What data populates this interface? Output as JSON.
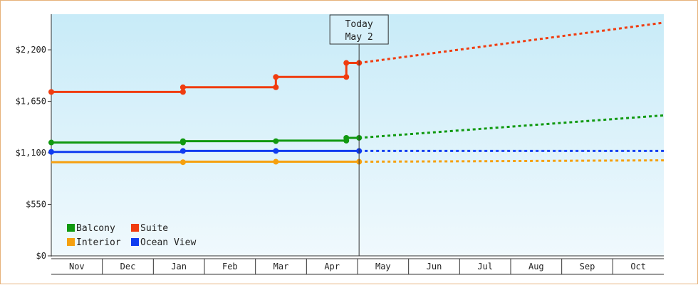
{
  "chart_data": {
    "type": "line",
    "y_tick_labels": [
      "$0",
      "$550",
      "$1,100",
      "$1,650",
      "$2,200"
    ],
    "y_ticks": [
      0,
      550,
      1100,
      1650,
      2200
    ],
    "ylim": [
      0,
      2580
    ],
    "x_months": [
      "Nov",
      "Dec",
      "Jan",
      "Feb",
      "Mar",
      "Apr",
      "May",
      "Jun",
      "Jul",
      "Aug",
      "Sep",
      "Oct"
    ],
    "today_label": [
      "Today",
      "May 2"
    ],
    "today_month_index": 6.03,
    "grid": false,
    "legend_position": "bottom-left",
    "series": [
      {
        "name": "Balcony",
        "color": "#109910",
        "points": [
          [
            0,
            1210
          ],
          [
            2.58,
            1210
          ],
          [
            2.58,
            1225
          ],
          [
            4.4,
            1225
          ],
          [
            4.4,
            1230
          ],
          [
            5.78,
            1230
          ],
          [
            5.78,
            1260
          ],
          [
            6.03,
            1260
          ]
        ],
        "forecast": [
          [
            6.03,
            1260
          ],
          [
            12,
            1500
          ]
        ]
      },
      {
        "name": "Suite",
        "color": "#f03c0f",
        "points": [
          [
            0,
            1750
          ],
          [
            2.58,
            1750
          ],
          [
            2.58,
            1800
          ],
          [
            4.4,
            1800
          ],
          [
            4.4,
            1910
          ],
          [
            5.78,
            1910
          ],
          [
            5.78,
            2060
          ],
          [
            6.03,
            2060
          ]
        ],
        "forecast": [
          [
            6.03,
            2060
          ],
          [
            12,
            2490
          ]
        ]
      },
      {
        "name": "Interior",
        "color": "#f5a00f",
        "points": [
          [
            0,
            1000
          ],
          [
            2.58,
            1000
          ],
          [
            2.58,
            1005
          ],
          [
            4.4,
            1005
          ],
          [
            4.4,
            1005
          ],
          [
            6.03,
            1005
          ]
        ],
        "forecast": [
          [
            6.03,
            1005
          ],
          [
            12,
            1020
          ]
        ]
      },
      {
        "name": "Ocean View",
        "color": "#0f3cf0",
        "points": [
          [
            0,
            1110
          ],
          [
            2.58,
            1110
          ],
          [
            2.58,
            1120
          ],
          [
            4.4,
            1120
          ],
          [
            4.4,
            1120
          ],
          [
            6.03,
            1120
          ]
        ],
        "forecast": [
          [
            6.03,
            1120
          ],
          [
            12,
            1120
          ]
        ]
      }
    ],
    "markers": [
      {
        "series": "Balcony",
        "points": [
          [
            0,
            1210
          ],
          [
            2.58,
            1210
          ],
          [
            2.58,
            1225
          ],
          [
            4.4,
            1225
          ],
          [
            5.78,
            1230
          ],
          [
            5.78,
            1260
          ],
          [
            6.03,
            1260
          ]
        ]
      },
      {
        "series": "Suite",
        "points": [
          [
            0,
            1750
          ],
          [
            2.58,
            1750
          ],
          [
            2.58,
            1800
          ],
          [
            4.4,
            1800
          ],
          [
            4.4,
            1910
          ],
          [
            5.78,
            1910
          ],
          [
            5.78,
            2060
          ],
          [
            6.03,
            2060
          ]
        ]
      },
      {
        "series": "Interior",
        "points": [
          [
            2.58,
            1000
          ],
          [
            4.4,
            1005
          ],
          [
            6.03,
            1005
          ]
        ]
      },
      {
        "series": "Ocean View",
        "points": [
          [
            0,
            1110
          ],
          [
            2.58,
            1120
          ],
          [
            4.4,
            1120
          ],
          [
            6.03,
            1120
          ]
        ]
      }
    ]
  },
  "legend": [
    {
      "label": "Balcony",
      "color": "#109910"
    },
    {
      "label": "Suite",
      "color": "#f03c0f"
    },
    {
      "label": "Interior",
      "color": "#f5a00f"
    },
    {
      "label": "Ocean View",
      "color": "#0f3cf0"
    }
  ]
}
